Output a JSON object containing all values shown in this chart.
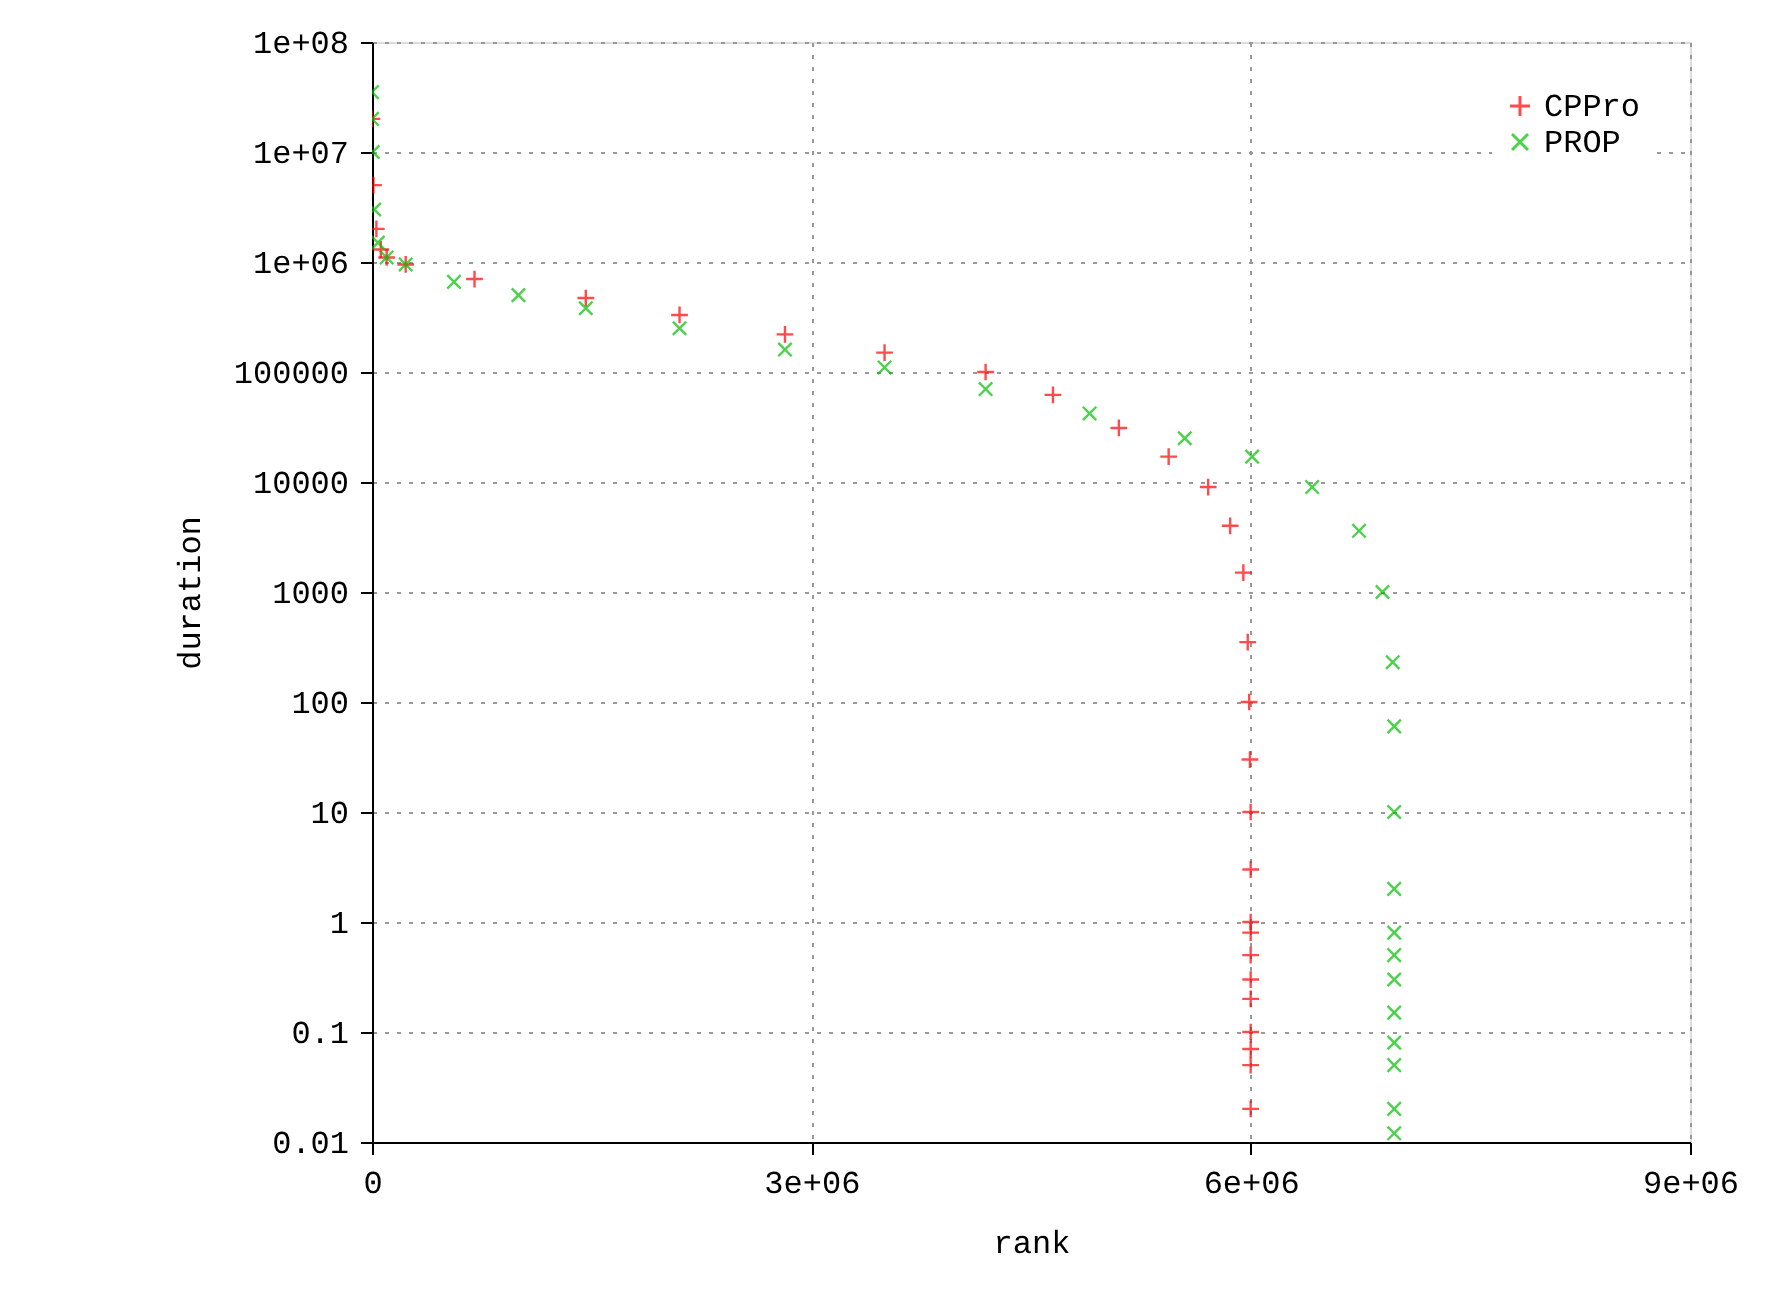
{
  "chart_data": {
    "type": "scatter",
    "xlabel": "rank",
    "ylabel": "duration",
    "xlim": [
      0,
      9000000
    ],
    "ylim": [
      0.01,
      100000000
    ],
    "log": "y",
    "grid": true,
    "legend": "top right",
    "xticks": [
      0,
      {
        "value": 3000000,
        "label": "3e+06"
      },
      {
        "value": 6000000,
        "label": "6e+06"
      },
      {
        "value": 9000000,
        "label": "9e+06"
      }
    ],
    "yticks": [
      0.01,
      0.1,
      1,
      10,
      100,
      1000,
      10000,
      100000,
      {
        "value": 1000000,
        "label": "1e+06"
      },
      {
        "value": 10000000,
        "label": "1e+07"
      },
      {
        "value": 100000000,
        "label": "1e+08"
      }
    ],
    "series": [
      {
        "name": "CPPro",
        "color": "#ff0000",
        "marker": "cross",
        "x": [
          0,
          10000,
          30000,
          60000,
          100000,
          230000,
          700000,
          1460000,
          2100000,
          2820000,
          3500000,
          4190000,
          4650000,
          5100000,
          5440000,
          5710000,
          5860000,
          5950000,
          5980000,
          5990000,
          5995000,
          6000000,
          6000000,
          6000000,
          6000000,
          6000000,
          6000000,
          6000000,
          6000000,
          6000000,
          6000000,
          6000000
        ],
        "values": [
          20000000,
          5000000,
          2000000,
          1300000,
          1100000,
          950000,
          700000,
          470000,
          330000,
          220000,
          150000,
          100000,
          62000,
          31000,
          17000,
          9000,
          4000,
          1500,
          350,
          100,
          30,
          10,
          3,
          1,
          0.8,
          0.5,
          0.3,
          0.2,
          0.1,
          0.07,
          0.05,
          0.02
        ]
      },
      {
        "name": "PROP",
        "color": "#00c000",
        "marker": "x",
        "x": [
          0,
          0,
          5000,
          15000,
          40000,
          100000,
          230000,
          560000,
          1000000,
          1460000,
          2100000,
          2820000,
          3500000,
          4190000,
          4900000,
          5550000,
          6010000,
          6420000,
          6740000,
          6900000,
          6970000,
          6980000,
          6980000,
          6980000,
          6980000,
          6980000,
          6980000,
          6980000,
          6980000,
          6980000,
          6980000,
          6980000
        ],
        "values": [
          35000000,
          20000000,
          10000000,
          3000000,
          1500000,
          1100000,
          950000,
          660000,
          500000,
          380000,
          250000,
          160000,
          110000,
          70000,
          42000,
          25000,
          17000,
          9000,
          3600,
          1000,
          230,
          60,
          10,
          2,
          0.8,
          0.5,
          0.3,
          0.15,
          0.08,
          0.05,
          0.02,
          0.012
        ]
      }
    ]
  }
}
